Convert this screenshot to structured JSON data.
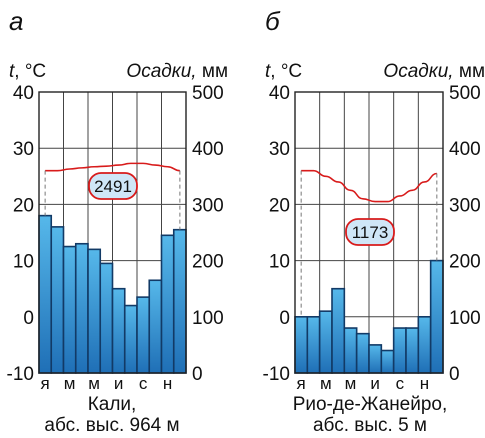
{
  "chart_data": [
    {
      "type": "bar",
      "panel_label": "а",
      "left_axis_label": "t, °C",
      "right_axis_label_italic": "Осадки,",
      "right_axis_unit": "мм",
      "left_ticks": [
        "40",
        "30",
        "20",
        "10",
        "0",
        "-10"
      ],
      "right_ticks": [
        "500",
        "400",
        "300",
        "200",
        "100",
        "0"
      ],
      "month_labels": [
        "я",
        "м",
        "м",
        "и",
        "с",
        "н"
      ],
      "temperature_range": [
        -10,
        40
      ],
      "precipitation_range": [
        0,
        500
      ],
      "precipitation_mm": [
        280,
        260,
        225,
        230,
        220,
        195,
        150,
        120,
        135,
        165,
        245,
        255
      ],
      "temperature_c": [
        26,
        26,
        26.3,
        26.5,
        26.7,
        26.8,
        27,
        27.3,
        27.3,
        27,
        26.7,
        26
      ],
      "annual_precipitation": "2491",
      "place_name": "Кали,",
      "elevation_note": "абс. выс. 964 м",
      "grid": true
    },
    {
      "type": "bar",
      "panel_label": "б",
      "left_axis_label": "t, °C",
      "right_axis_label_italic": "Осадки,",
      "right_axis_unit": "мм",
      "left_ticks": [
        "40",
        "30",
        "20",
        "10",
        "0",
        "-10"
      ],
      "right_ticks": [
        "500",
        "400",
        "300",
        "200",
        "100",
        "0"
      ],
      "month_labels": [
        "я",
        "м",
        "м",
        "и",
        "с",
        "н"
      ],
      "temperature_range": [
        -10,
        40
      ],
      "precipitation_range": [
        0,
        500
      ],
      "precipitation_mm": [
        100,
        100,
        110,
        150,
        80,
        70,
        50,
        40,
        80,
        80,
        100,
        200
      ],
      "temperature_c": [
        26,
        26,
        25,
        24,
        22.5,
        21,
        20.5,
        20.5,
        21.5,
        22.5,
        24,
        25.5
      ],
      "annual_precipitation": "1173",
      "place_name": "Рио-де-Жанейро,",
      "elevation_note": "абс. выс. 5 м",
      "grid": true
    }
  ],
  "colors": {
    "bar_top": "#56b8ea",
    "bar_bottom": "#1f6fb6",
    "bar_border": "#123a66",
    "temperature_line": "#d81b1b",
    "badge_fill": "#cfe6f7",
    "badge_border": "#d81b1b",
    "grid": "#444444"
  }
}
